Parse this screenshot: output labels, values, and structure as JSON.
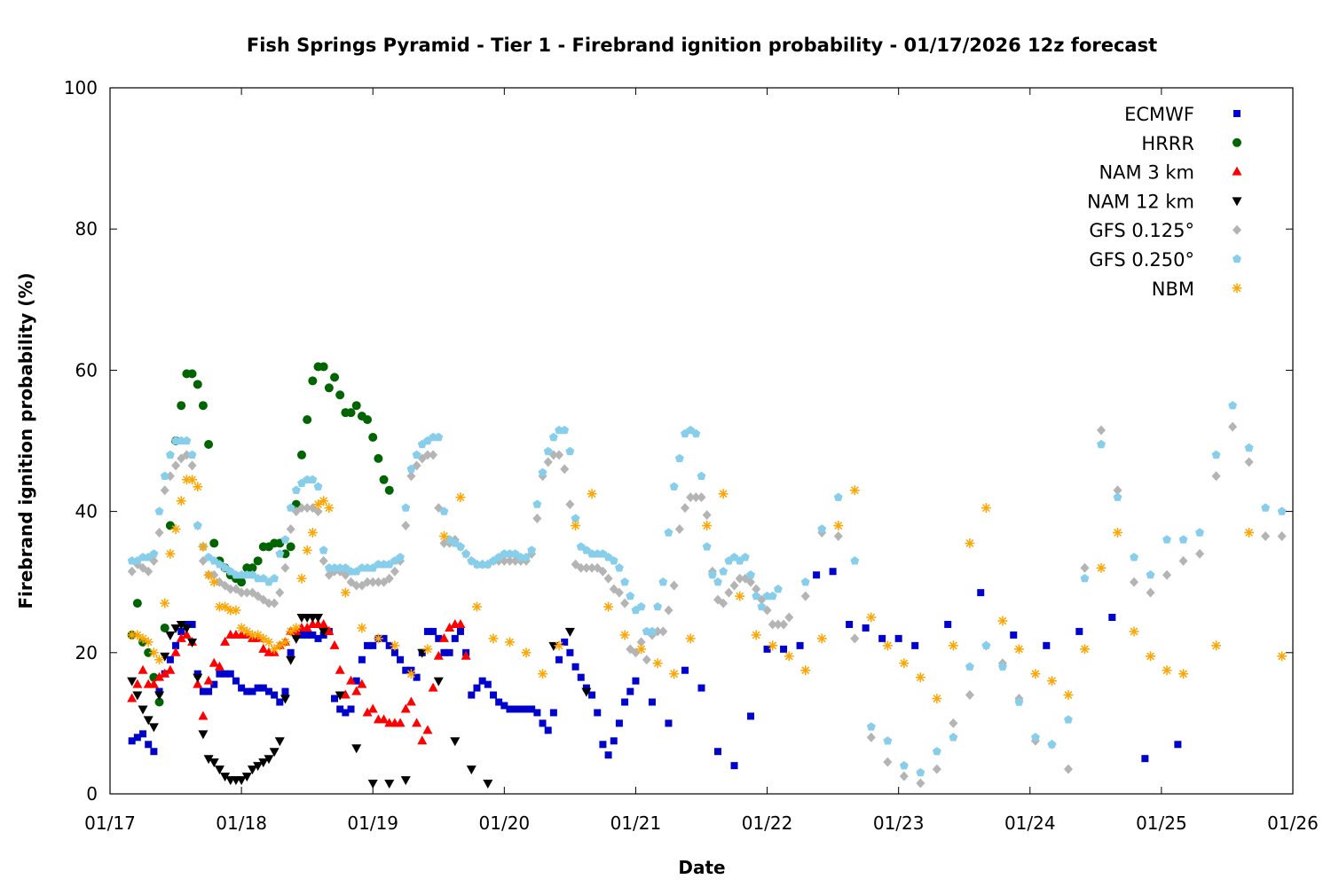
{
  "chart_data": {
    "type": "scatter",
    "title": "Fish Springs Pyramid - Tier 1 - Firebrand ignition probability - 01/17/2026 12z forecast",
    "xlabel": "Date",
    "ylabel": "Firebrand ignition probability (%)",
    "x_units": "hours since 01/17 00z",
    "xlim": [
      0,
      216
    ],
    "ylim": [
      0,
      100
    ],
    "x_ticks": [
      {
        "value": 0,
        "label": "01/17"
      },
      {
        "value": 24,
        "label": "01/18"
      },
      {
        "value": 48,
        "label": "01/19"
      },
      {
        "value": 72,
        "label": "01/20"
      },
      {
        "value": 96,
        "label": "01/21"
      },
      {
        "value": 120,
        "label": "01/22"
      },
      {
        "value": 144,
        "label": "01/23"
      },
      {
        "value": 168,
        "label": "01/24"
      },
      {
        "value": 192,
        "label": "01/25"
      },
      {
        "value": 216,
        "label": "01/26"
      }
    ],
    "y_ticks": [
      0,
      20,
      40,
      60,
      80,
      100
    ],
    "legend_position": "top-right",
    "grid": false,
    "series": [
      {
        "name": "ECMWF",
        "marker": "square",
        "color": "#0000cc",
        "segments": [
          {
            "start": 4,
            "step": 1,
            "values": [
              7.5,
              8,
              8.5,
              7,
              6,
              14.5,
              17,
              19,
              21,
              23,
              24,
              24,
              17,
              14.5,
              14.5,
              15.5,
              17,
              17,
              17,
              16,
              15,
              14.5,
              14.5,
              15,
              15,
              14.5,
              14,
              13,
              14.5,
              20,
              22.5,
              22.5,
              22.5,
              22.5,
              22,
              22.5,
              23,
              13.5,
              12,
              11.5,
              12,
              16,
              19,
              21,
              21,
              22,
              22,
              21,
              20,
              19,
              17.5,
              17.5,
              16.5,
              20,
              23,
              23,
              22,
              20,
              20,
              22,
              23,
              20,
              14,
              15,
              16,
              15.5,
              14,
              13,
              12.5,
              12,
              12,
              12,
              12,
              12,
              11.5,
              10,
              9,
              11.5,
              19,
              21.5,
              20,
              18,
              16.5,
              15,
              14,
              11.5,
              7,
              5.5,
              7.5,
              10,
              13,
              14.5
            ]
          },
          {
            "start": 96,
            "step": 3,
            "values": [
              16,
              13,
              10,
              17.5,
              15,
              6,
              4,
              11,
              20.5,
              20.5,
              21,
              31,
              31.5,
              24,
              23.5,
              22,
              22,
              21
            ]
          },
          {
            "start": 153,
            "step": 6,
            "values": [
              24,
              28.5,
              22.5,
              21,
              23,
              25,
              5,
              7
            ]
          }
        ]
      },
      {
        "name": "HRRR",
        "marker": "circle",
        "color": "#006400",
        "segments": [
          {
            "start": 4,
            "step": 1,
            "values": [
              22.5,
              27,
              21.5,
              20,
              16.5,
              13,
              23.5,
              38,
              50,
              55,
              59.5,
              59.5,
              58,
              55,
              49.5,
              35.5,
              33,
              32,
              31,
              30.5,
              30,
              32,
              32,
              33,
              35,
              35,
              35.5,
              35.5,
              34,
              35,
              41,
              48,
              53,
              58.5,
              60.5,
              60.5,
              57.5,
              59,
              56.5,
              54,
              54,
              55,
              53.5,
              53,
              50.5,
              47.5,
              44.5,
              43
            ]
          }
        ]
      },
      {
        "name": "NAM 3 km",
        "marker": "triangle-up",
        "color": "#ff0000",
        "segments": [
          {
            "start": 4,
            "step": 1,
            "values": [
              13.5,
              15.5,
              17.5,
              15.5,
              15.5,
              16.5,
              17,
              17.5,
              20,
              22,
              22.5,
              21.5,
              15.5,
              11,
              16,
              18.5,
              18,
              21.5,
              22.5,
              22.5,
              22.5,
              22.5,
              22,
              22,
              20.5,
              20,
              20,
              21,
              21.5,
              23,
              23,
              23.5,
              23.5,
              24,
              24,
              24,
              23,
              21,
              17.5,
              14,
              16,
              14.5,
              15.5,
              11.5,
              12,
              10.5,
              10.5,
              10,
              10,
              10,
              12,
              13,
              10,
              7.5,
              9,
              15,
              19.5,
              22,
              23.5,
              24,
              24,
              19.5
            ]
          }
        ]
      },
      {
        "name": "NAM 12 km",
        "marker": "triangle-down",
        "color": "#000000",
        "segments": [
          {
            "start": 4,
            "step": 1,
            "values": [
              16,
              14,
              12,
              10.5,
              9.5,
              14,
              19.5,
              22.5,
              23.5,
              24,
              23.5,
              21.5,
              16.5,
              8.5,
              5,
              4.5,
              3.5,
              2.5,
              2,
              2,
              2,
              2.5,
              3.5,
              4,
              4.5,
              5,
              6,
              7.5,
              13.5,
              19,
              22,
              25,
              25,
              25,
              25,
              23
            ]
          },
          {
            "start": 42,
            "step": 3,
            "values": [
              14,
              6.5,
              1.5,
              1.5,
              2,
              20,
              16,
              7.5,
              3.5,
              1.5
            ]
          },
          {
            "start": 81,
            "step": 3,
            "values": [
              21,
              23,
              14.5
            ]
          }
        ]
      },
      {
        "name": "GFS 0.125°",
        "marker": "diamond",
        "color": "#b4b4b4",
        "segments": [
          {
            "start": 4,
            "step": 1,
            "values": [
              31.5,
              32.5,
              32,
              31.5,
              33,
              37,
              43,
              45,
              46.5,
              47.5,
              48,
              46.5,
              38,
              33,
              31,
              31,
              30,
              29.5,
              29,
              29,
              28.5,
              28.5,
              28.5,
              28,
              27.5,
              27,
              27,
              28.5,
              32,
              37.5,
              40,
              40.5,
              40.5,
              40.5,
              40,
              33,
              31,
              31.5,
              31.5,
              31,
              30,
              29.5,
              29.5,
              30,
              30,
              30,
              30,
              30.5,
              31.5,
              33,
              38,
              45,
              46.5,
              47.5,
              48,
              48,
              40.5,
              35.5,
              35.5,
              36,
              35,
              34,
              33,
              32.5,
              32.5,
              32.5,
              33,
              33,
              33,
              33,
              33,
              33,
              33,
              34,
              39,
              45,
              47,
              48,
              48,
              46,
              41,
              32.5,
              32,
              32,
              32,
              32,
              31.5,
              30.5,
              29,
              28.5,
              27,
              20.5,
              20,
              21.5,
              19,
              22.5,
              23,
              23,
              26,
              29.5,
              37.5,
              40.5,
              42,
              42,
              42,
              39.5,
              31.5,
              27.5,
              27,
              28.5,
              29.5,
              30.5,
              30.5,
              30,
              29,
              27.5,
              26,
              24,
              24,
              24,
              25
            ]
          },
          {
            "start": 127,
            "step": 3,
            "values": [
              28,
              37,
              36.5,
              22,
              8,
              4.5,
              2.5,
              1.5,
              3.5,
              10,
              14,
              21,
              18.5,
              13.5,
              7.5,
              7,
              3.5,
              32,
              51.5,
              43,
              30,
              28.5,
              31,
              33,
              34,
              45,
              52,
              47,
              36.5,
              36.5
            ]
          }
        ]
      },
      {
        "name": "GFS 0.250°",
        "marker": "pentagon",
        "color": "#87ceeb",
        "segments": [
          {
            "start": 4,
            "step": 1,
            "values": [
              33,
              33,
              33.5,
              33.5,
              34,
              40,
              45,
              48,
              50,
              50,
              50,
              48,
              38,
              35,
              33.5,
              33,
              32.5,
              32,
              31.5,
              31,
              31,
              31,
              31,
              30.5,
              30.5,
              30,
              30.5,
              34,
              36,
              40.5,
              43,
              44,
              44.5,
              44.5,
              43.5,
              34.5,
              32,
              32,
              32,
              32,
              31.5,
              31.5,
              32,
              32,
              32,
              32.5,
              32.5,
              32.5,
              33,
              33.5,
              40.5,
              46,
              48,
              49.5,
              50,
              50.5,
              50.5,
              40,
              36,
              35.5,
              35,
              34,
              33,
              32.5,
              32.5,
              32.5,
              33,
              33.5,
              34,
              34,
              34,
              33.5,
              33.5,
              34.5,
              41,
              45.5,
              48.5,
              50.5,
              51.5,
              51.5,
              48.5,
              39,
              35,
              34.5,
              34,
              34,
              34,
              33.5,
              33,
              32,
              30,
              28,
              26,
              26.5,
              23,
              23,
              26.5,
              30,
              37,
              43.5,
              47.5,
              51,
              51.5,
              51,
              45,
              35,
              31,
              30,
              31.5,
              33,
              33.5,
              33,
              33.5,
              31,
              28,
              26.5,
              28,
              28,
              29
            ]
          },
          {
            "start": 127,
            "step": 3,
            "values": [
              30,
              37.5,
              42,
              33,
              9.5,
              7.5,
              4,
              3,
              6,
              8,
              18,
              21,
              18,
              13,
              8,
              7,
              10.5,
              30.5,
              49.5,
              42,
              33.5,
              31,
              36,
              36,
              37,
              48,
              55,
              49,
              40.5,
              40
            ]
          }
        ]
      },
      {
        "name": "NBM",
        "marker": "asterisk",
        "color": "#ffa500",
        "segments": [
          {
            "start": 4,
            "step": 1,
            "values": [
              22.5,
              22.5,
              22,
              21.5,
              20,
              19,
              27,
              34,
              37.5,
              41.5,
              44.5,
              44.5,
              43.5,
              35,
              31,
              30,
              26.5,
              26.5,
              26,
              26,
              23.5,
              23,
              22.5,
              22.5,
              22,
              21.5,
              20.5,
              21,
              21.5,
              23,
              23.5,
              30.5,
              34.5,
              37,
              41,
              41.5,
              40.5
            ]
          },
          {
            "start": 43,
            "step": 3,
            "values": [
              28.5,
              23.5,
              22,
              21,
              17,
              20.5,
              36.5,
              42,
              26.5,
              22,
              21.5,
              20,
              17,
              21,
              38,
              42.5,
              26.5,
              22.5,
              20.5,
              18.5,
              17,
              22,
              38,
              42.5,
              28,
              22.5,
              21,
              19.5,
              17.5,
              22,
              38,
              43,
              25,
              21,
              18.5,
              16.5,
              13.5,
              21,
              35.5,
              40.5,
              24.5,
              20.5,
              17,
              16,
              14,
              20.5,
              32,
              37,
              23,
              19.5,
              17.5,
              17
            ]
          },
          {
            "start": 202,
            "step": 6,
            "values": [
              21,
              37,
              19.5
            ]
          }
        ]
      }
    ]
  }
}
